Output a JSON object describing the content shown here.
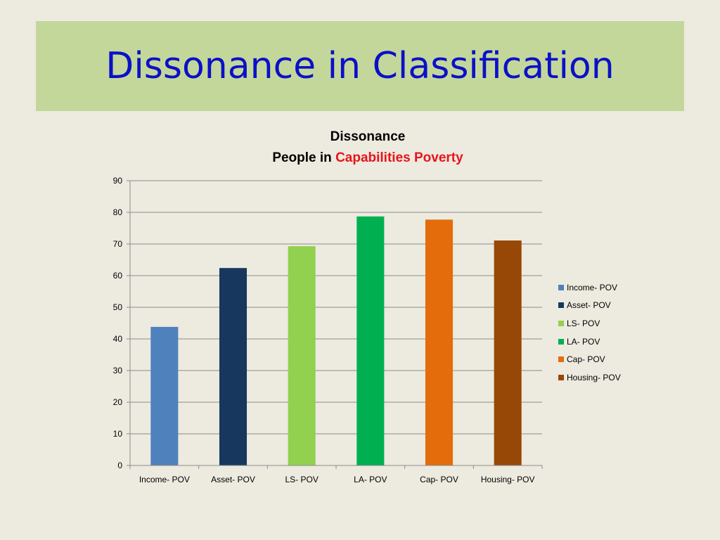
{
  "slide": {
    "title": "Dissonance in Classification"
  },
  "chart_data": {
    "type": "bar",
    "title_line1": "Dissonance",
    "title_line2_prefix": "People in ",
    "title_line2_highlight": "Capabilities Poverty",
    "categories": [
      "Income- POV",
      "Asset- POV",
      "LS- POV",
      "LA- POV",
      "Cap- POV",
      "Housing- POV"
    ],
    "values": [
      43.8,
      62.4,
      69.3,
      78.7,
      77.7,
      71.1
    ],
    "colors": [
      "#4F81BD",
      "#17375E",
      "#92D050",
      "#00B050",
      "#E46C0A",
      "#974706"
    ],
    "ylim": [
      0,
      90
    ],
    "yticks": [
      0,
      10,
      20,
      30,
      40,
      50,
      60,
      70,
      80,
      90
    ],
    "grid": true,
    "legend_position": "right",
    "xlabel": "",
    "ylabel": ""
  }
}
